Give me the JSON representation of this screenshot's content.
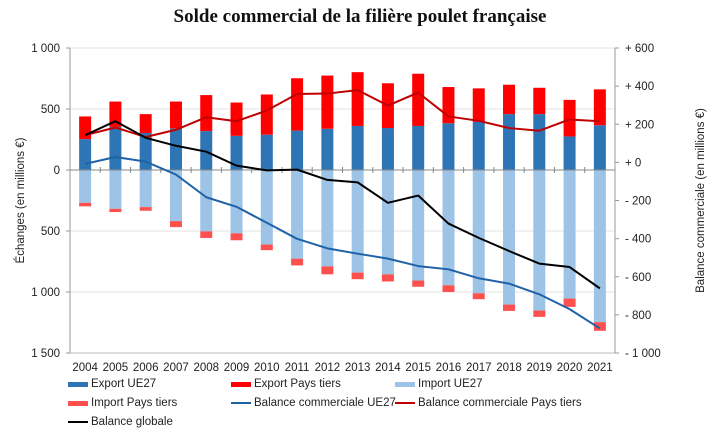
{
  "chart_data": {
    "type": "bar",
    "title": "Solde commercial de la filière poulet française",
    "ylabel_left": "Échanges (en millions €)",
    "ylabel_right": "Balance commerciale (en millions €)",
    "xlabel": "",
    "categories": [
      "2004",
      "2005",
      "2006",
      "2007",
      "2008",
      "2009",
      "2010",
      "2011",
      "2012",
      "2013",
      "2014",
      "2015",
      "2016",
      "2017",
      "2018",
      "2019",
      "2020",
      "2021"
    ],
    "left_axis": {
      "range": [
        -1500,
        1000
      ],
      "ticks": [
        1000,
        500,
        0,
        -500,
        -1000,
        -1500
      ],
      "tick_labels": [
        "1 000",
        "500",
        "0",
        "500",
        "1 000",
        "1 500"
      ]
    },
    "right_axis": {
      "range": [
        -1000,
        600
      ],
      "ticks": [
        600,
        400,
        200,
        0,
        -200,
        -400,
        -600,
        -800,
        -1000
      ],
      "tick_labels": [
        "+ 600",
        "+ 400",
        "+ 200",
        "+ 0",
        "- 200",
        "- 400",
        "- 600",
        "- 800",
        "- 1 000"
      ]
    },
    "grid": true,
    "legend_position": "bottom",
    "bar_series": [
      {
        "name": "Export UE27",
        "color": "#2E75B6",
        "stack": "export",
        "values": [
          253,
          353,
          303,
          341,
          319,
          280,
          289,
          323,
          338,
          361,
          344,
          361,
          383,
          394,
          458,
          458,
          275,
          367
        ]
      },
      {
        "name": "Export Pays tiers",
        "color": "#FF0000",
        "stack": "export",
        "values": [
          186,
          208,
          155,
          220,
          295,
          273,
          330,
          429,
          436,
          441,
          367,
          428,
          297,
          275,
          241,
          216,
          300,
          294
        ]
      },
      {
        "name": "Import UE27",
        "color": "#9DC3E6",
        "stack": "import",
        "values": [
          -269,
          -318,
          -304,
          -419,
          -503,
          -519,
          -611,
          -727,
          -790,
          -841,
          -855,
          -906,
          -945,
          -1010,
          -1103,
          -1152,
          -1054,
          -1247
        ]
      },
      {
        "name": "Import Pays tiers",
        "color": "#FF5050",
        "stack": "import",
        "values": [
          -29,
          -27,
          -30,
          -49,
          -54,
          -57,
          -46,
          -55,
          -65,
          -54,
          -59,
          -51,
          -55,
          -49,
          -52,
          -52,
          -68,
          -71
        ]
      }
    ],
    "line_series": [
      {
        "name": "Balance commerciale UE27",
        "color": "#1F62A8",
        "axis": "right",
        "values": [
          -8,
          28,
          4,
          -64,
          -183,
          -233,
          -317,
          -401,
          -451,
          -479,
          -505,
          -544,
          -561,
          -608,
          -636,
          -692,
          -770,
          -871
        ]
      },
      {
        "name": "Balance commerciale Pays tiers",
        "color": "#C00000",
        "axis": "right",
        "values": [
          143,
          183,
          133,
          171,
          237,
          216,
          272,
          359,
          361,
          379,
          298,
          366,
          241,
          218,
          180,
          166,
          225,
          216
        ]
      },
      {
        "name": "Balance globale",
        "color": "#000000",
        "axis": "right",
        "values": [
          143,
          216,
          129,
          87,
          56,
          -17,
          -42,
          -38,
          -92,
          -105,
          -212,
          -174,
          -321,
          -396,
          -465,
          -531,
          -549,
          -661
        ]
      }
    ],
    "legend": [
      {
        "label": "Export UE27",
        "kind": "bar",
        "color": "#2E75B6"
      },
      {
        "label": "Export Pays tiers",
        "kind": "bar",
        "color": "#FF0000"
      },
      {
        "label": "Import UE27",
        "kind": "bar",
        "color": "#9DC3E6"
      },
      {
        "label": "Import Pays tiers",
        "kind": "bar",
        "color": "#FF5050"
      },
      {
        "label": "Balance commerciale UE27",
        "kind": "line",
        "color": "#1F62A8"
      },
      {
        "label": "Balance commerciale Pays tiers",
        "kind": "line",
        "color": "#C00000"
      },
      {
        "label": "Balance globale",
        "kind": "line",
        "color": "#000000"
      }
    ]
  }
}
